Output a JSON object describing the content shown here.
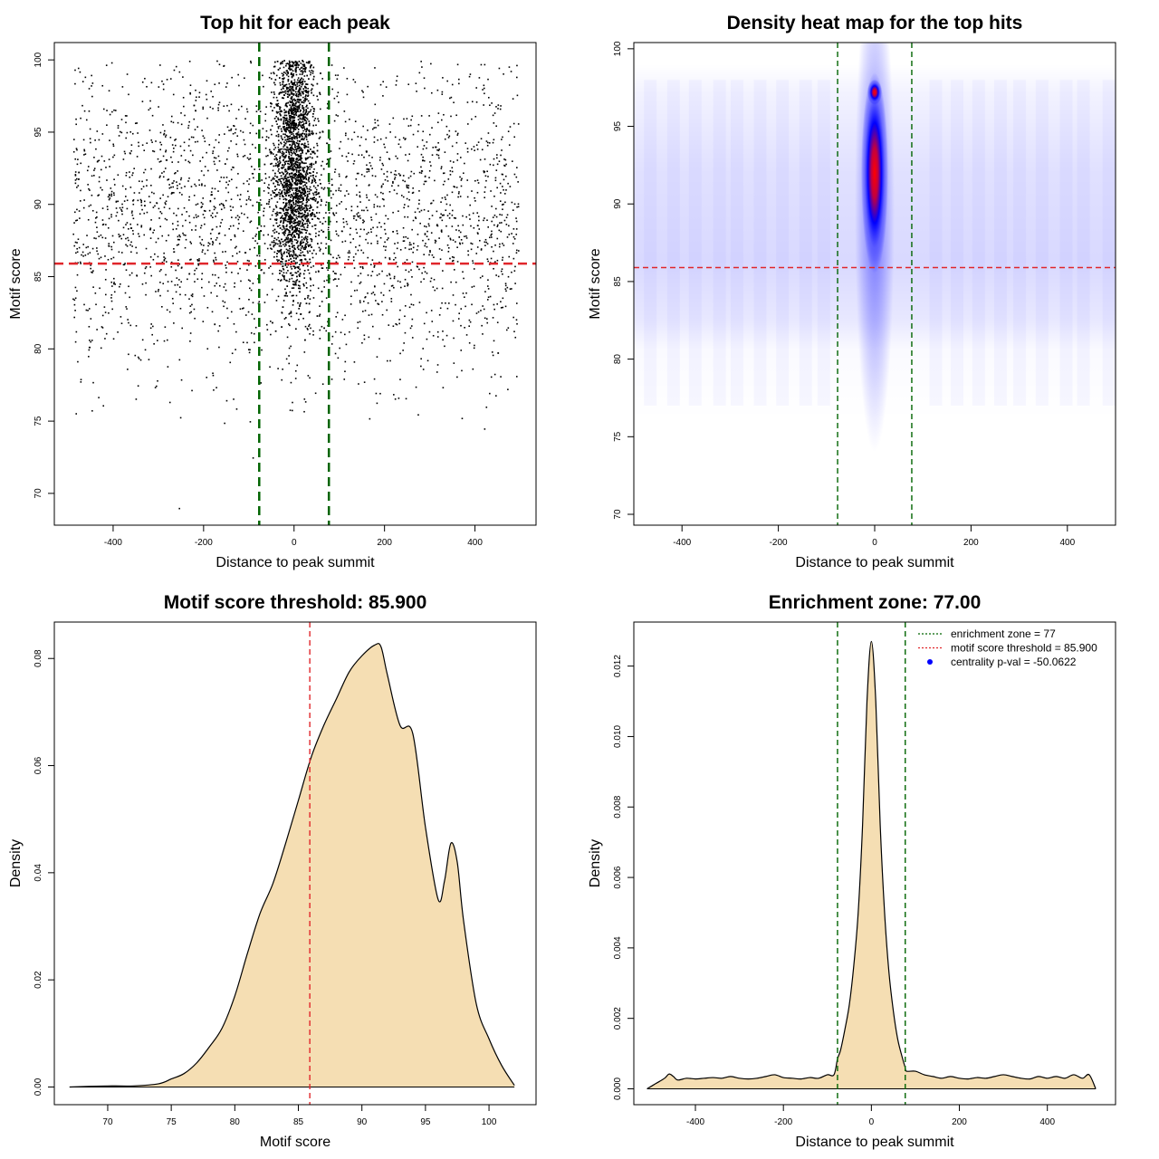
{
  "chart_data": [
    {
      "panel": "scatter",
      "type": "scatter",
      "title": "Top hit for each peak",
      "xlabel": "Distance to peak summit",
      "ylabel": "Motif score",
      "xlim": [
        -530,
        535
      ],
      "ylim": [
        67.8,
        101.2
      ],
      "xticks": [
        -400,
        -200,
        0,
        200,
        400
      ],
      "yticks": [
        70,
        75,
        80,
        85,
        90,
        95,
        100
      ],
      "threshold": 85.9,
      "enrichment_zone": 77,
      "colors": {
        "points": "#000000",
        "threshold": "#e0262b",
        "zone": "#006400"
      },
      "points_description": {
        "background_points": 2600,
        "background_x_range": [
          -490,
          495
        ],
        "background_score_range": [
          74.5,
          100
        ],
        "central_points": 3200,
        "central_x_sd": 22,
        "central_score_range": [
          75.5,
          100
        ]
      }
    },
    {
      "panel": "heatmap",
      "type": "heatmap",
      "title": "Density heat map for the top hits",
      "xlabel": "Distance to peak summit",
      "ylabel": "Motif score",
      "xlim": [
        -500,
        500
      ],
      "ylim": [
        69.3,
        100.4
      ],
      "xticks": [
        -400,
        -200,
        0,
        200,
        400
      ],
      "yticks": [
        70,
        75,
        80,
        85,
        90,
        95,
        100
      ],
      "threshold": 85.9,
      "enrichment_zone": 77,
      "colors": {
        "low": "#ffffff",
        "mid": "#0000ff",
        "high": "#ff0000",
        "threshold": "#e0262b",
        "zone": "#006400"
      }
    },
    {
      "panel": "score_density",
      "type": "area",
      "title": "Motif score threshold: 85.900",
      "xlabel": "Motif score",
      "ylabel": "Density",
      "xlim": [
        65.8,
        103.7
      ],
      "ylim": [
        -0.0033,
        0.0868
      ],
      "xticks": [
        70,
        75,
        80,
        85,
        90,
        95,
        100
      ],
      "yticks": [
        0.0,
        0.02,
        0.04,
        0.06,
        0.08
      ],
      "ytick_labels": [
        "0.00",
        "0.02",
        "0.04",
        "0.06",
        "0.08"
      ],
      "threshold": 85.9,
      "x": [
        67,
        70,
        72,
        74,
        75,
        76,
        77,
        78,
        79,
        80,
        81,
        82,
        83,
        84,
        85,
        86,
        87,
        88,
        89,
        90,
        91,
        91.5,
        92,
        93,
        94,
        95,
        96,
        96.5,
        97,
        97.5,
        98,
        99,
        100,
        101,
        102
      ],
      "y": [
        0.0,
        0.0002,
        0.0002,
        0.0006,
        0.0015,
        0.0025,
        0.0045,
        0.0075,
        0.011,
        0.017,
        0.025,
        0.0325,
        0.038,
        0.0455,
        0.0535,
        0.0615,
        0.0675,
        0.0725,
        0.0775,
        0.0805,
        0.0825,
        0.0822,
        0.077,
        0.0675,
        0.066,
        0.0485,
        0.035,
        0.0385,
        0.0455,
        0.042,
        0.031,
        0.0155,
        0.009,
        0.004,
        0.0003
      ],
      "colors": {
        "fill": "#f5deb3",
        "line": "#000000",
        "threshold": "#e0262b"
      }
    },
    {
      "panel": "distance_density",
      "type": "area",
      "title": "Enrichment zone: 77.00",
      "xlabel": "Distance to peak summit",
      "ylabel": "Density",
      "xlim": [
        -540,
        555
      ],
      "ylim": [
        -0.00045,
        0.01325
      ],
      "xticks": [
        -400,
        -200,
        0,
        200,
        400
      ],
      "yticks": [
        0.0,
        0.002,
        0.004,
        0.006,
        0.008,
        0.01,
        0.012
      ],
      "ytick_labels": [
        "0.000",
        "0.002",
        "0.004",
        "0.006",
        "0.008",
        "0.010",
        "0.012"
      ],
      "enrichment_zone": 77,
      "x": [
        -510,
        -490,
        -470,
        -460,
        -450,
        -440,
        -420,
        -400,
        -380,
        -360,
        -340,
        -320,
        -300,
        -280,
        -260,
        -240,
        -220,
        -200,
        -180,
        -160,
        -140,
        -120,
        -100,
        -85,
        -77,
        -70,
        -60,
        -50,
        -40,
        -30,
        -20,
        -10,
        0,
        10,
        20,
        30,
        40,
        50,
        60,
        70,
        77,
        80,
        100,
        120,
        140,
        160,
        180,
        200,
        220,
        240,
        260,
        280,
        300,
        320,
        340,
        360,
        380,
        400,
        420,
        440,
        460,
        480,
        495,
        510
      ],
      "y": [
        0.0,
        0.00015,
        0.0003,
        0.00042,
        0.00035,
        0.00025,
        0.0003,
        0.00028,
        0.0003,
        0.00032,
        0.0003,
        0.00035,
        0.0003,
        0.00028,
        0.0003,
        0.00035,
        0.0004,
        0.00032,
        0.0003,
        0.00028,
        0.00032,
        0.0003,
        0.0004,
        0.0004,
        0.00085,
        0.0011,
        0.0017,
        0.0024,
        0.0035,
        0.005,
        0.0075,
        0.011,
        0.0127,
        0.011,
        0.0075,
        0.005,
        0.0033,
        0.0022,
        0.0014,
        0.0009,
        0.0006,
        0.0005,
        0.0005,
        0.0004,
        0.00035,
        0.0003,
        0.00035,
        0.0003,
        0.00028,
        0.00032,
        0.0003,
        0.00035,
        0.0004,
        0.00035,
        0.0003,
        0.00028,
        0.00035,
        0.0003,
        0.00035,
        0.0003,
        0.0004,
        0.0003,
        0.0004,
        0.0
      ],
      "colors": {
        "fill": "#f5deb3",
        "line": "#000000",
        "zone": "#006400"
      },
      "legend": {
        "position": "top-right",
        "entries": [
          {
            "label": "enrichment zone = 77",
            "style": "dotted-line",
            "color": "#006400"
          },
          {
            "label": "motif score threshold = 85.900",
            "style": "dotted-line",
            "color": "#e0262b"
          },
          {
            "label": "centrality p-val = -50.0622",
            "style": "point",
            "color": "#0000ff"
          }
        ]
      }
    }
  ]
}
